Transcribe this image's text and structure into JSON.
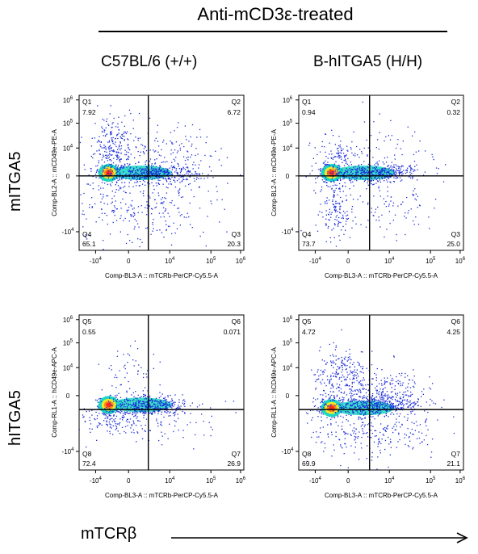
{
  "header": {
    "title": "Anti-mCD3ε-treated",
    "col_left": "C57BL/6 (+/+)",
    "col_right": "B-hITGA5 (H/H)",
    "row_top": "mITGA5",
    "row_bottom": "hITGA5",
    "x_arrow_label": "mTCRβ"
  },
  "colors": {
    "density_low": "#1a2bd6",
    "density_mid": "#19d7c2",
    "density_high": "#ff2a1a",
    "gate_line": "#000000"
  },
  "chart_data": [
    {
      "type": "scatter",
      "panel": "top-left",
      "xlabel": "Comp-BL3-A :: mTCRb-PerCP-Cy5.5-A",
      "ylabel": "Comp-BL2-A :: mCD49e-PE-A",
      "x_ticks": [
        "-10^4",
        "0",
        "10^4",
        "10^5",
        "10^6"
      ],
      "y_ticks": [
        "10^6",
        "10^5",
        "10^4",
        "0",
        "-10^4"
      ],
      "quadrants": [
        {
          "name": "Q1",
          "value": "7.92"
        },
        {
          "name": "Q2",
          "value": "6.72"
        },
        {
          "name": "Q3",
          "value": "20.3"
        },
        {
          "name": "Q4",
          "value": "65.1"
        }
      ]
    },
    {
      "type": "scatter",
      "panel": "top-right",
      "xlabel": "Comp-BL3-A :: mTCRb-PerCP-Cy5.5-A",
      "ylabel": "Comp-BL2-A :: mCD49e-PE-A",
      "x_ticks": [
        "-10^4",
        "0",
        "10^4",
        "10^5",
        "10^6"
      ],
      "y_ticks": [
        "10^6",
        "10^5",
        "10^4",
        "0",
        "-10^4"
      ],
      "quadrants": [
        {
          "name": "Q1",
          "value": "0.94"
        },
        {
          "name": "Q2",
          "value": "0.32"
        },
        {
          "name": "Q3",
          "value": "25.0"
        },
        {
          "name": "Q4",
          "value": "73.7"
        }
      ]
    },
    {
      "type": "scatter",
      "panel": "bottom-left",
      "xlabel": "Comp-BL3-A :: mTCRb-PerCP-Cy5.5-A",
      "ylabel": "Comp-RL1-A :: hCD49e-APC-A",
      "x_ticks": [
        "-10^4",
        "0",
        "10^4",
        "10^5",
        "10^6"
      ],
      "y_ticks": [
        "10^6",
        "10^5",
        "10^4",
        "0",
        "-10^4"
      ],
      "quadrants": [
        {
          "name": "Q5",
          "value": "0.55"
        },
        {
          "name": "Q6",
          "value": "0.071"
        },
        {
          "name": "Q7",
          "value": "26.9"
        },
        {
          "name": "Q8",
          "value": "72.4"
        }
      ]
    },
    {
      "type": "scatter",
      "panel": "bottom-right",
      "xlabel": "Comp-BL3-A :: mTCRb-PerCP-Cy5.5-A",
      "ylabel": "Comp-RL1-A :: hCD49e-APC-A",
      "x_ticks": [
        "-10^4",
        "0",
        "10^4",
        "10^5",
        "10^6"
      ],
      "y_ticks": [
        "10^6",
        "10^5",
        "10^4",
        "0",
        "-10^4"
      ],
      "quadrants": [
        {
          "name": "Q5",
          "value": "4.72"
        },
        {
          "name": "Q6",
          "value": "4.25"
        },
        {
          "name": "Q7",
          "value": "21.1"
        },
        {
          "name": "Q8",
          "value": "69.9"
        }
      ]
    }
  ]
}
